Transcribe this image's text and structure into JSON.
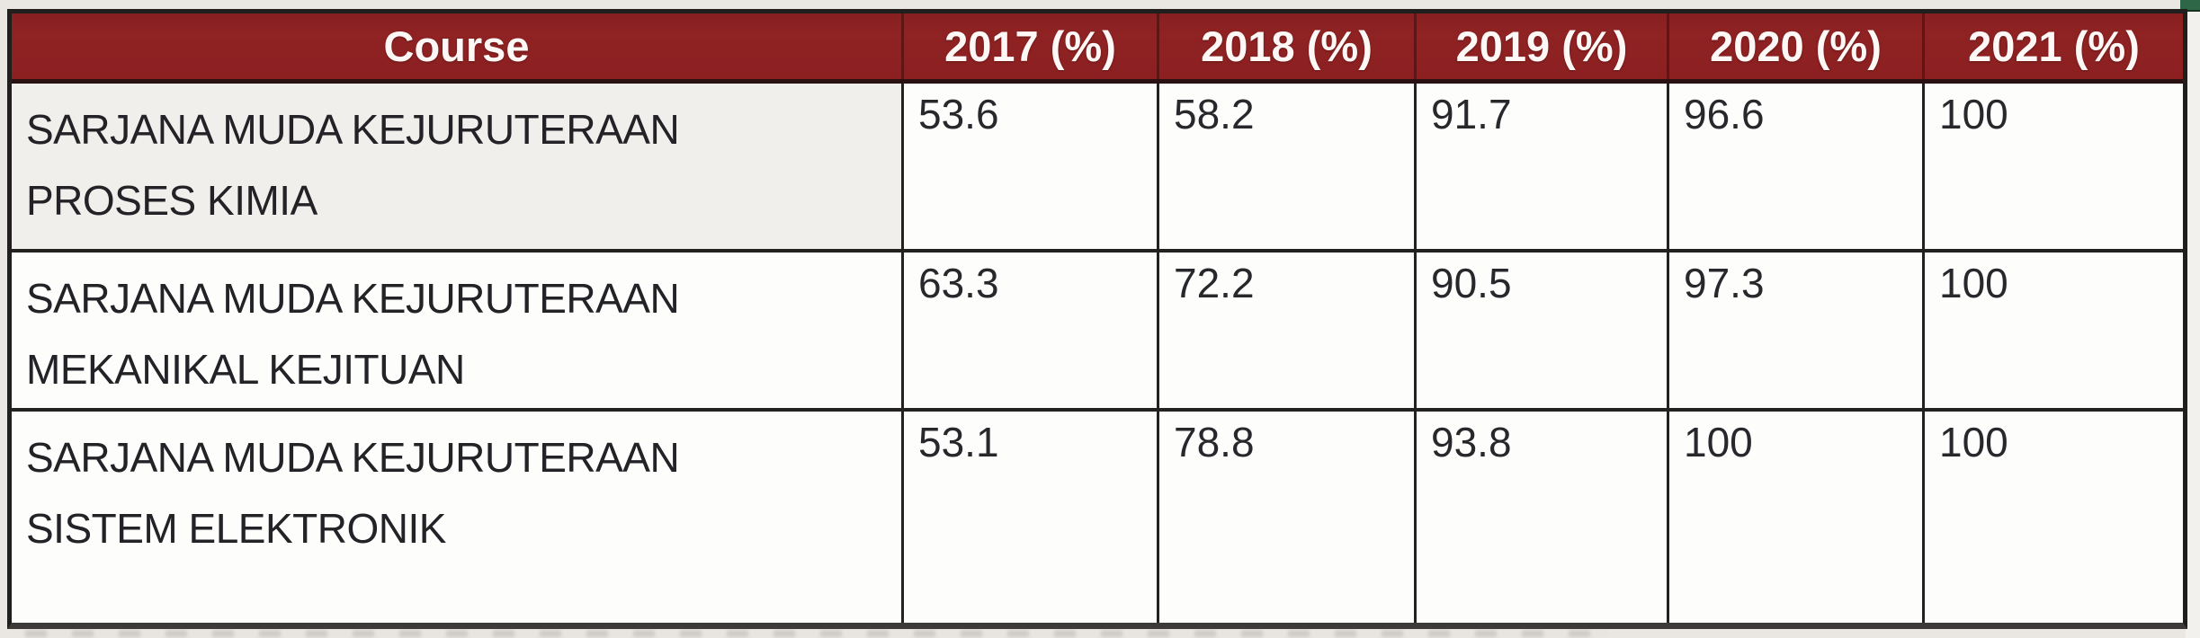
{
  "table": {
    "columns": {
      "course": "Course",
      "y2017": "2017 (%)",
      "y2018": "2018 (%)",
      "y2019": "2019 (%)",
      "y2020": "2020 (%)",
      "y2021": "2021 (%)"
    },
    "rows": [
      {
        "course_line1": "SARJANA MUDA KEJURUTERAAN",
        "course_line2": "PROSES KIMIA",
        "values": [
          "53.6",
          "58.2",
          "91.7",
          "96.6",
          "100"
        ]
      },
      {
        "course_line1": "SARJANA MUDA KEJURUTERAAN",
        "course_line2": "MEKANIKAL KEJITUAN",
        "values": [
          "63.3",
          "72.2",
          "90.5",
          "97.3",
          "100"
        ]
      },
      {
        "course_line1": "SARJANA MUDA KEJURUTERAAN",
        "course_line2": "SISTEM ELEKTRONIK",
        "values": [
          "53.1",
          "78.8",
          "93.8",
          "100",
          "100"
        ]
      }
    ]
  },
  "colors": {
    "header_bg": "#8c2021",
    "header_text": "#fdf8f6",
    "border": "#242220",
    "shaded_cell_bg": "#f1efeb",
    "page_bg": "#eae7e3",
    "green_sliver": "#2e6747"
  }
}
